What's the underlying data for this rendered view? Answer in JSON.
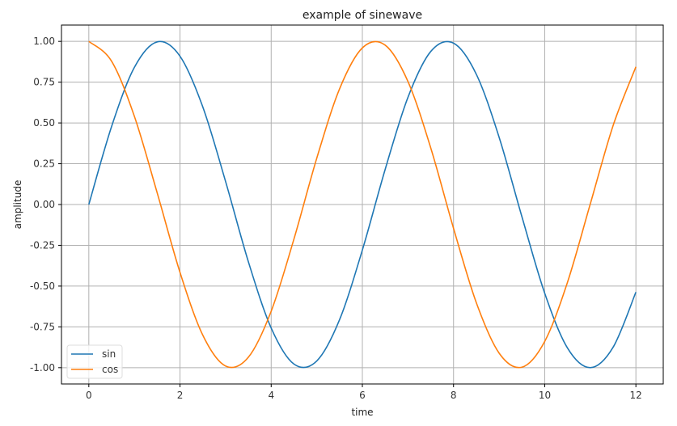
{
  "chart_data": {
    "type": "line",
    "title": "example of sinewave",
    "xlabel": "time",
    "ylabel": "amplitude",
    "xlim": [
      -0.6,
      12.6
    ],
    "ylim": [
      -1.1,
      1.1
    ],
    "xticks": [
      0,
      2,
      4,
      6,
      8,
      10,
      12
    ],
    "xtick_labels": [
      "0",
      "2",
      "4",
      "6",
      "8",
      "10",
      "12"
    ],
    "yticks": [
      1.0,
      0.75,
      0.5,
      0.25,
      0.0,
      -0.25,
      -0.5,
      -0.75,
      -1.0
    ],
    "ytick_labels": [
      "1.00",
      "0.75",
      "0.50",
      "0.25",
      "0.00",
      "-0.25",
      "-0.50",
      "-0.75",
      "-1.00"
    ],
    "grid": true,
    "legend_position": "lower-left",
    "x": [
      0,
      0.5,
      1,
      1.5,
      2,
      2.5,
      3,
      3.5,
      4,
      4.5,
      5,
      5.5,
      6,
      6.5,
      7,
      7.5,
      8,
      8.5,
      9,
      9.5,
      10,
      10.5,
      11,
      11.5,
      12
    ],
    "series": [
      {
        "name": "sin",
        "color": "#1f77b4",
        "values": [
          0,
          0.479,
          0.841,
          0.997,
          0.909,
          0.598,
          0.141,
          -0.351,
          -0.757,
          -0.978,
          -0.959,
          -0.706,
          -0.279,
          0.215,
          0.657,
          0.938,
          0.989,
          0.798,
          0.412,
          -0.075,
          -0.544,
          -0.88,
          -1.0,
          -0.875,
          -0.537
        ]
      },
      {
        "name": "cos",
        "color": "#ff7f0e",
        "values": [
          1,
          0.878,
          0.54,
          0.071,
          -0.416,
          -0.801,
          -0.99,
          -0.936,
          -0.654,
          -0.211,
          0.284,
          0.709,
          0.96,
          0.977,
          0.754,
          0.347,
          -0.146,
          -0.602,
          -0.911,
          -0.997,
          -0.839,
          -0.476,
          0.004,
          0.484,
          0.844
        ]
      }
    ]
  }
}
